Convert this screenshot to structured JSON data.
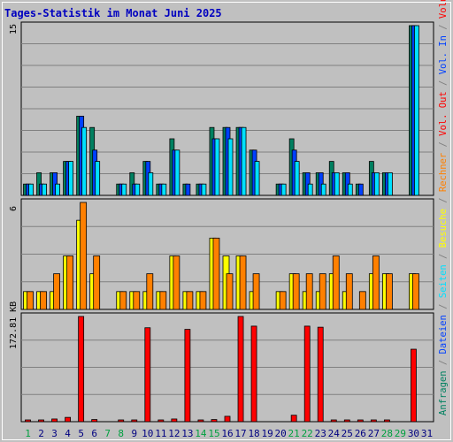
{
  "title": "Tages-Statistik im Monat Juni 2025",
  "colors": {
    "background": "#c0c0c0",
    "title": "#0000c0",
    "grid": "#808080",
    "hits": "#008060",
    "files": "#0040ff",
    "pages": "#00e0ff",
    "visits": "#ffff00",
    "sites": "#ff8000",
    "kbytes": "#ff0000",
    "weekend_day": "#00a040",
    "weekday": "#000080"
  },
  "chart_data": [
    {
      "type": "bar",
      "panel": "hits-files-pages",
      "ylim": [
        0,
        15
      ],
      "y_tick_label": "15",
      "categories": [
        "1",
        "2",
        "3",
        "4",
        "5",
        "6",
        "7",
        "8",
        "9",
        "10",
        "11",
        "12",
        "13",
        "14",
        "15",
        "16",
        "17",
        "18",
        "19",
        "20",
        "21",
        "22",
        "23",
        "24",
        "25",
        "26",
        "27",
        "28",
        "29",
        "30",
        "31"
      ],
      "series": [
        {
          "name": "Anfragen",
          "color_key": "hits",
          "values": [
            1,
            2,
            2,
            3,
            7,
            6,
            0,
            1,
            2,
            3,
            1,
            5,
            1,
            1,
            6,
            6,
            6,
            4,
            0,
            1,
            5,
            2,
            2,
            3,
            2,
            1,
            3,
            2,
            0,
            15,
            0
          ]
        },
        {
          "name": "Dateien",
          "color_key": "files",
          "values": [
            1,
            1,
            2,
            3,
            7,
            4,
            0,
            1,
            1,
            3,
            1,
            4,
            1,
            1,
            5,
            6,
            6,
            4,
            0,
            1,
            4,
            2,
            2,
            2,
            2,
            1,
            2,
            2,
            0,
            15,
            0
          ]
        },
        {
          "name": "Seiten",
          "color_key": "pages",
          "values": [
            1,
            1,
            1,
            3,
            6,
            3,
            0,
            1,
            1,
            2,
            1,
            4,
            0,
            1,
            5,
            5,
            6,
            3,
            0,
            1,
            3,
            1,
            1,
            2,
            1,
            0,
            2,
            2,
            0,
            15,
            0
          ]
        }
      ]
    },
    {
      "type": "bar",
      "panel": "visits-sites",
      "ylim": [
        0,
        6
      ],
      "y_tick_label": "6",
      "categories": [
        "1",
        "2",
        "3",
        "4",
        "5",
        "6",
        "7",
        "8",
        "9",
        "10",
        "11",
        "12",
        "13",
        "14",
        "15",
        "16",
        "17",
        "18",
        "19",
        "20",
        "21",
        "22",
        "23",
        "24",
        "25",
        "26",
        "27",
        "28",
        "29",
        "30",
        "31"
      ],
      "series": [
        {
          "name": "Besuche",
          "color_key": "visits",
          "values": [
            1,
            1,
            1,
            3,
            5,
            2,
            0,
            1,
            1,
            1,
            1,
            3,
            1,
            1,
            4,
            3,
            3,
            1,
            0,
            1,
            2,
            1,
            1,
            2,
            1,
            0,
            2,
            2,
            0,
            2,
            0
          ]
        },
        {
          "name": "Rechner",
          "color_key": "sites",
          "values": [
            1,
            1,
            2,
            3,
            6,
            3,
            0,
            1,
            1,
            2,
            1,
            3,
            1,
            1,
            4,
            2,
            3,
            2,
            0,
            1,
            2,
            2,
            2,
            3,
            2,
            1,
            3,
            2,
            0,
            2,
            0
          ]
        }
      ]
    },
    {
      "type": "bar",
      "panel": "volume",
      "ylim": [
        0,
        196
      ],
      "y_tick_value": 172.81,
      "y_tick_label": "172.81 KB",
      "categories": [
        "1",
        "2",
        "3",
        "4",
        "5",
        "6",
        "7",
        "8",
        "9",
        "10",
        "11",
        "12",
        "13",
        "14",
        "15",
        "16",
        "17",
        "18",
        "19",
        "20",
        "21",
        "22",
        "23",
        "24",
        "25",
        "26",
        "27",
        "28",
        "29",
        "30",
        "31"
      ],
      "series": [
        {
          "name": "Volumen",
          "color_key": "kbytes",
          "values": [
            3,
            2,
            5,
            8,
            196,
            4,
            0,
            1,
            2,
            175,
            1,
            5,
            172,
            1,
            4,
            10,
            196,
            178,
            0,
            0,
            12,
            178,
            176,
            1,
            1,
            1,
            1,
            1,
            0,
            135,
            0
          ]
        }
      ]
    }
  ],
  "legend_hits": [
    {
      "text": "Anfragen",
      "color_key": "hits"
    },
    {
      "text": " / ",
      "color_key": "grid"
    },
    {
      "text": "Dateien",
      "color_key": "files"
    },
    {
      "text": " / ",
      "color_key": "grid"
    },
    {
      "text": "Seiten",
      "color_key": "pages"
    },
    {
      "text": " / ",
      "color_key": "grid"
    },
    {
      "text": "Besuche",
      "color_key": "visits"
    },
    {
      "text": " / ",
      "color_key": "grid"
    },
    {
      "text": "Rechner",
      "color_key": "sites"
    },
    {
      "text": " / ",
      "color_key": "grid"
    },
    {
      "text": "Vol. Out",
      "color_key": "kbytes"
    },
    {
      "text": " / ",
      "color_key": "grid"
    },
    {
      "text": "Vol. In",
      "color_key": "files"
    },
    {
      "text": " / ",
      "color_key": "grid"
    },
    {
      "text": "Volumen",
      "color_key": "kbytes"
    }
  ],
  "weekend_days": [
    "1",
    "7",
    "8",
    "14",
    "15",
    "21",
    "22",
    "28",
    "29"
  ]
}
